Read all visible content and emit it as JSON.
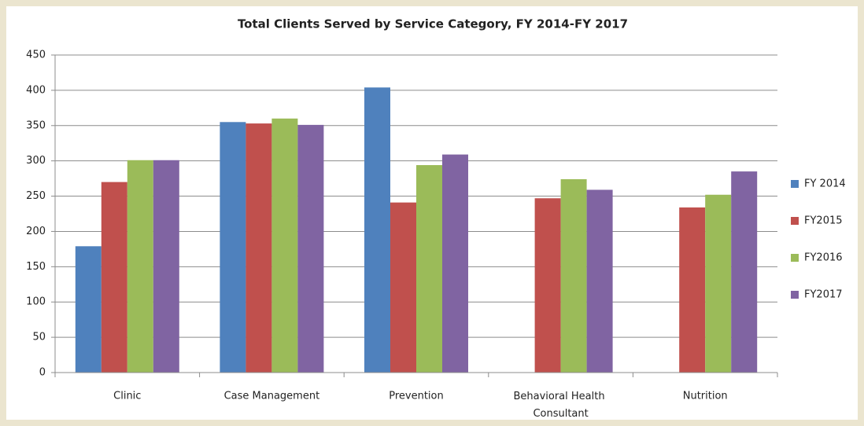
{
  "chart_data": {
    "type": "bar",
    "title": "Total Clients Served by Service Category, FY 2014-FY 2017",
    "categories": [
      "Clinic",
      "Case Management",
      "Prevention",
      "Behavioral Health Consultant",
      "Nutrition"
    ],
    "series": [
      {
        "name": "FY 2014",
        "color": "#4f81bd",
        "values": [
          179,
          355,
          404,
          null,
          null
        ]
      },
      {
        "name": "FY2015",
        "color": "#c0504d",
        "values": [
          270,
          353,
          241,
          247,
          234
        ]
      },
      {
        "name": "FY2016",
        "color": "#9bbb59",
        "values": [
          301,
          360,
          294,
          274,
          252
        ]
      },
      {
        "name": "FY2017",
        "color": "#8064a2",
        "values": [
          301,
          351,
          309,
          259,
          285
        ]
      }
    ],
    "ylim": [
      0,
      450
    ],
    "yticks": [
      0,
      50,
      100,
      150,
      200,
      250,
      300,
      350,
      400,
      450
    ],
    "grid": true,
    "legend": "right"
  }
}
